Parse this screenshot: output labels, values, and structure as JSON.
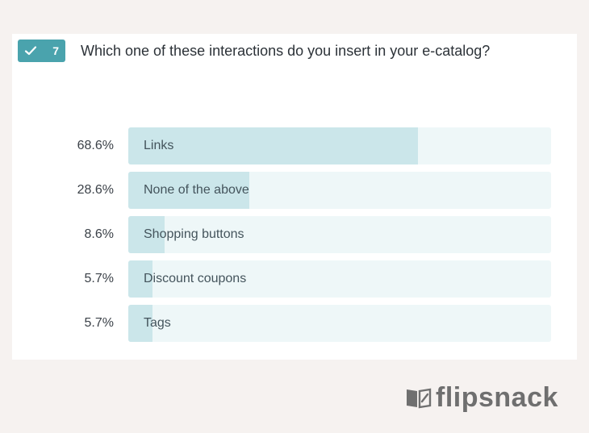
{
  "question": {
    "number": "7",
    "text": "Which one of these interactions do you insert in your e-catalog?"
  },
  "colors": {
    "badge": "#4aa3ad",
    "bar_fill": "#cbe6ea",
    "bar_track": "#eef7f8",
    "background": "#f6f2f0"
  },
  "chart_data": {
    "type": "bar",
    "orientation": "horizontal",
    "title": "Which one of these interactions do you insert in your e-catalog?",
    "categories": [
      "Links",
      "None of the above",
      "Shopping buttons",
      "Discount coupons",
      "Tags"
    ],
    "values": [
      68.6,
      28.6,
      8.6,
      5.7,
      5.7
    ],
    "value_labels": [
      "68.6%",
      "28.6%",
      "8.6%",
      "5.7%",
      "5.7%"
    ],
    "unit": "%",
    "xlim": [
      0,
      100
    ],
    "grid": false
  },
  "brand": {
    "name": "flipsnack",
    "icon": "open-book-icon"
  }
}
